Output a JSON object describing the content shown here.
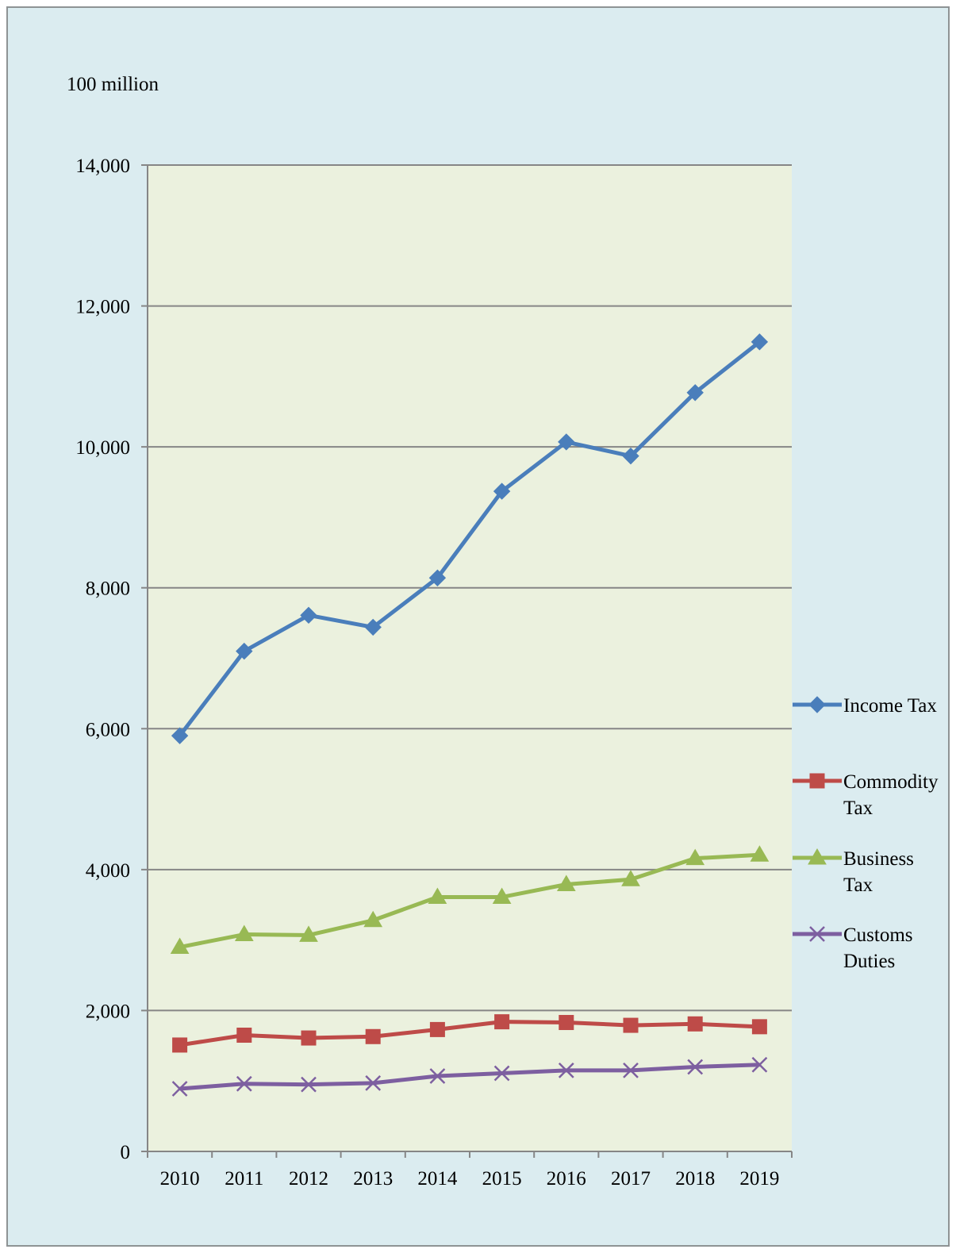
{
  "chart_data": {
    "type": "line",
    "unit_label": "100 million",
    "categories": [
      "2010",
      "2011",
      "2012",
      "2013",
      "2014",
      "2015",
      "2016",
      "2017",
      "2018",
      "2019"
    ],
    "ylim": [
      0,
      14000
    ],
    "yticks": [
      0,
      2000,
      4000,
      6000,
      8000,
      10000,
      12000,
      14000
    ],
    "ytick_labels": [
      "0",
      "2,000",
      "4,000",
      "6,000",
      "8,000",
      "10,000",
      "12,000",
      "14,000"
    ],
    "grid": true,
    "legend_position": "right",
    "series": [
      {
        "name": "Income Tax",
        "legend_lines": [
          "Income Tax"
        ],
        "color": "#4a7ebb",
        "marker": "diamond",
        "values": [
          5900,
          7100,
          7610,
          7440,
          8140,
          9370,
          10070,
          9870,
          10770,
          11490
        ]
      },
      {
        "name": "Commodity Tax",
        "legend_lines": [
          "Commodity",
          "Tax"
        ],
        "color": "#be4b48",
        "marker": "square",
        "values": [
          1510,
          1650,
          1610,
          1630,
          1730,
          1840,
          1830,
          1790,
          1810,
          1770
        ]
      },
      {
        "name": "Business Tax",
        "legend_lines": [
          "Business",
          "Tax"
        ],
        "color": "#98b954",
        "marker": "triangle",
        "values": [
          2900,
          3080,
          3070,
          3280,
          3610,
          3610,
          3790,
          3860,
          4160,
          4210
        ]
      },
      {
        "name": "Customs Duties",
        "legend_lines": [
          "Customs",
          "Duties"
        ],
        "color": "#7d5fa0",
        "marker": "x",
        "values": [
          890,
          960,
          950,
          970,
          1070,
          1110,
          1150,
          1150,
          1200,
          1230
        ]
      }
    ]
  }
}
